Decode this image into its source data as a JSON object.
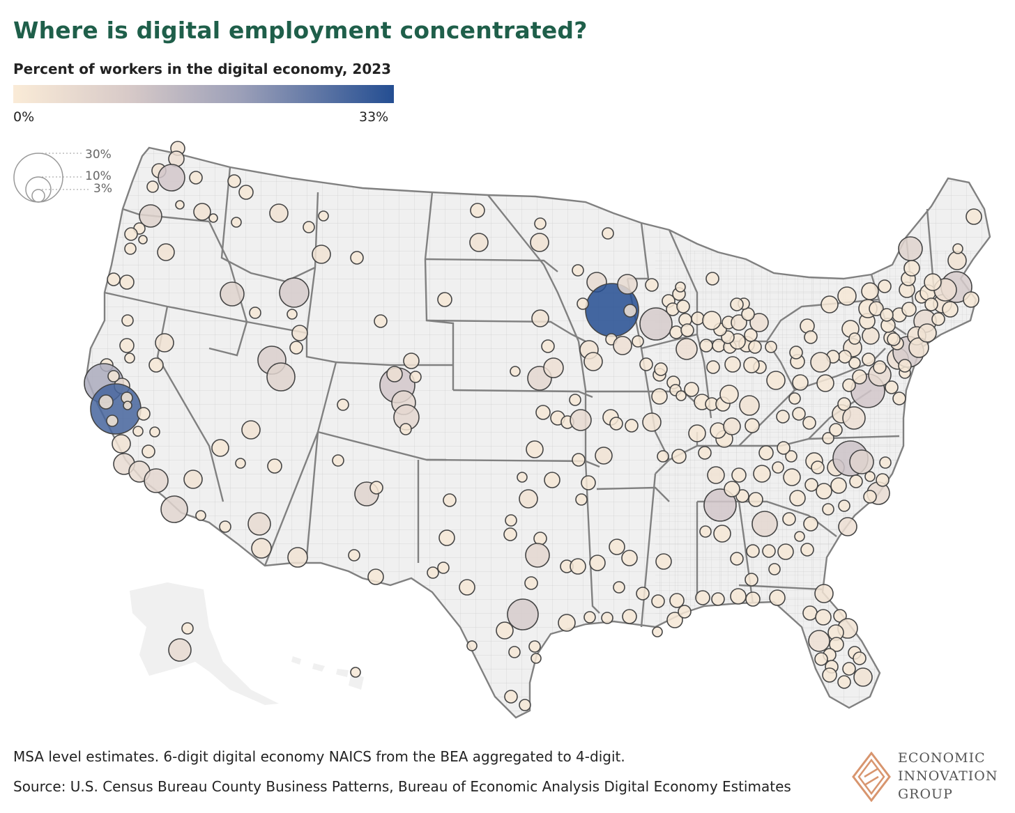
{
  "title": "Where is digital employment concentrated?",
  "subtitle": "Percent of workers in the digital economy, 2023",
  "color_scale": {
    "min_label": "0%",
    "max_label": "33%",
    "min": 0,
    "max": 33,
    "colors": [
      "#faebd7",
      "#244e92"
    ]
  },
  "size_legend": {
    "labels": [
      "30%",
      "10%",
      "3%"
    ],
    "values": [
      30,
      10,
      3
    ]
  },
  "footer": {
    "note": "MSA level estimates. 6-digit digital economy NAICS from the BEA aggregated to 4-digit.",
    "source": "Source: U.S. Census Bureau County Business Patterns, Bureau of Economic Analysis Digital Economy Estimates"
  },
  "logo": {
    "lines": [
      "ECONOMIC",
      "INNOVATION",
      "GROUP"
    ]
  },
  "colors": {
    "title": "#1f5f4a",
    "land": "#f0f0f0",
    "state_border": "#7a7a7a",
    "county_border": "#c8c8c8",
    "bubble_low": "#faebd7",
    "bubble_high": "#244e92",
    "logo_accent": "#d8956e"
  }
}
